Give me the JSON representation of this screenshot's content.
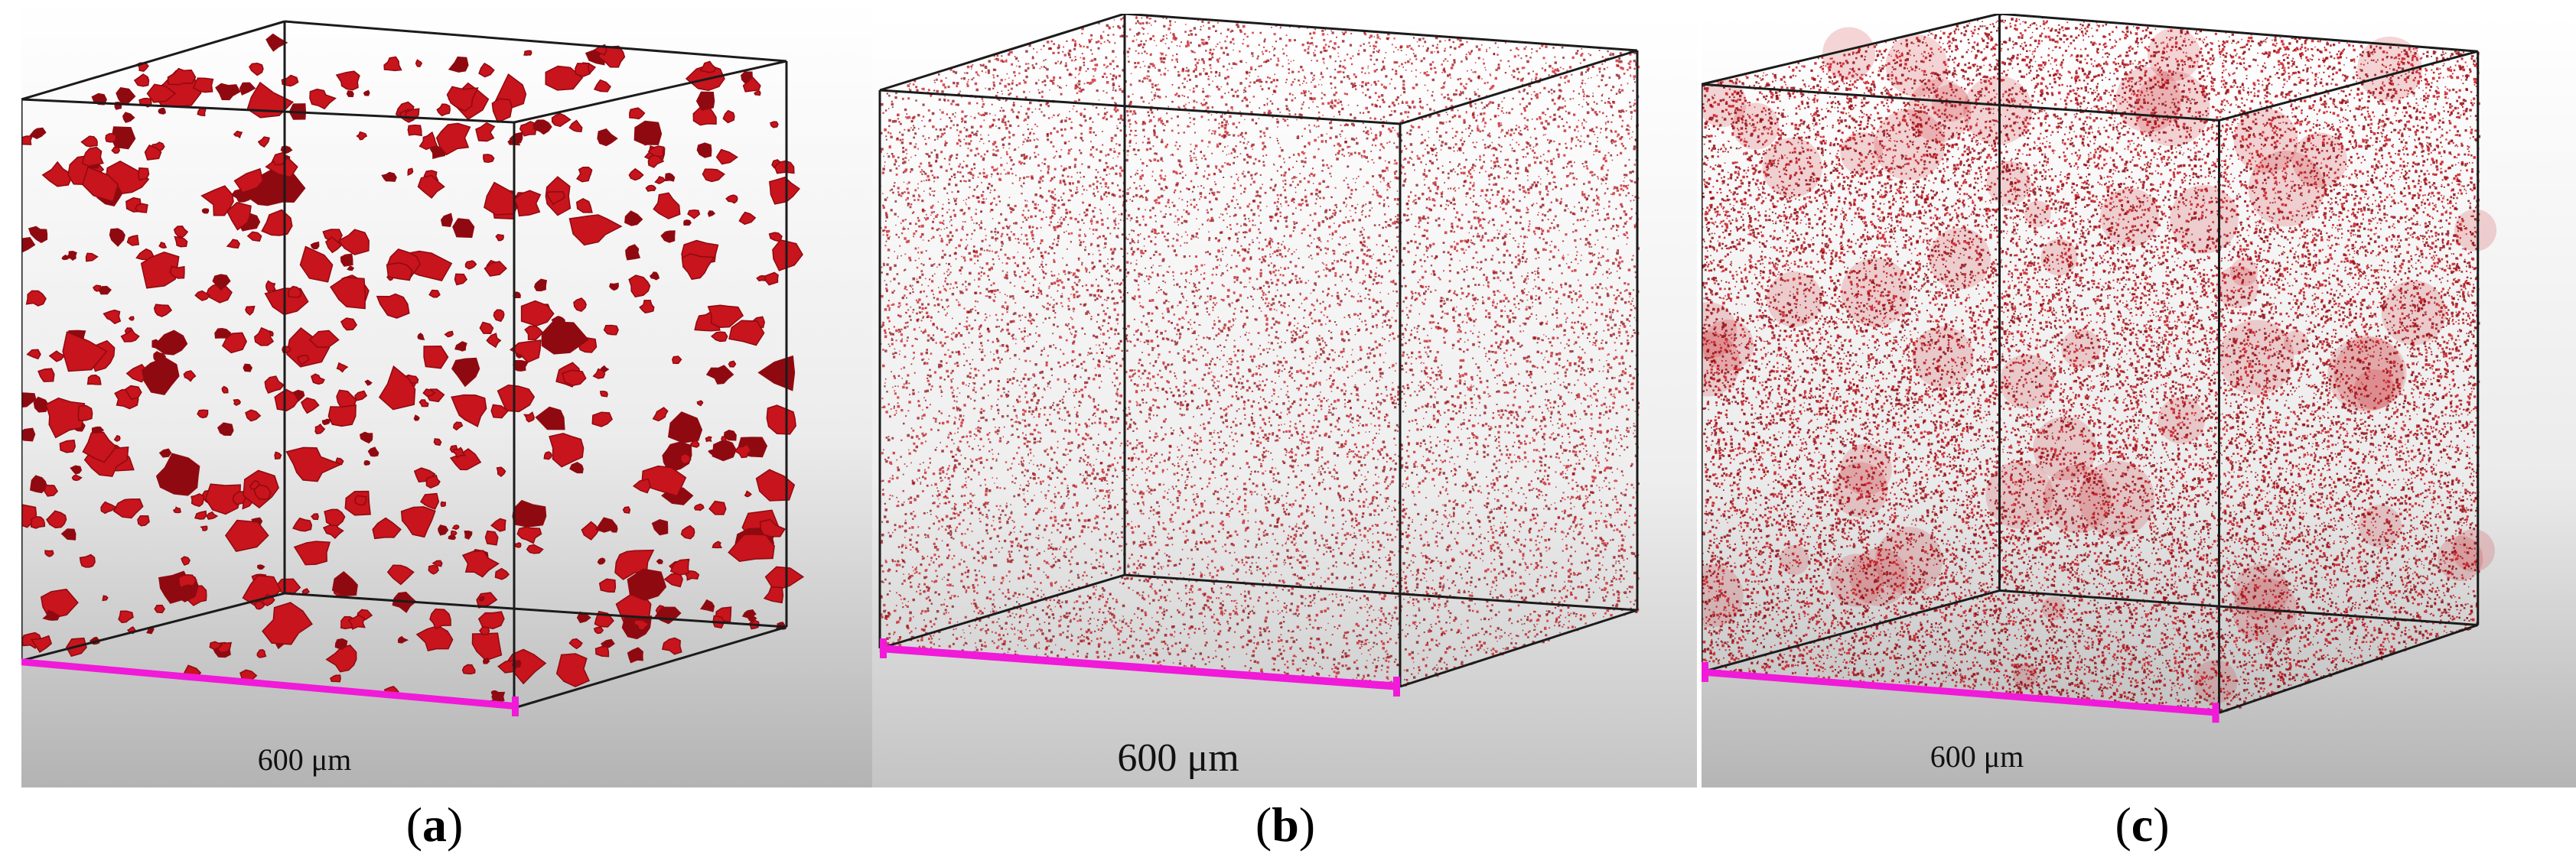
{
  "panels": [
    {
      "id": "a",
      "letter": "a",
      "scale_label": "600 μm",
      "particle_style": "large-agglomerates"
    },
    {
      "id": "b",
      "letter": "b",
      "scale_label": "600 μm",
      "particle_style": "fine-dispersed"
    },
    {
      "id": "c",
      "letter": "c",
      "scale_label": "600 μm",
      "particle_style": "dense-fine-dispersed"
    }
  ],
  "colors": {
    "particle": "#c8141c",
    "particle_dark": "#8e0a10",
    "scale_bar": "#f01ad8",
    "cube_edge": "#1b1b1b",
    "background_top": "#ffffff",
    "background_bottom": "#b9b9b9"
  }
}
